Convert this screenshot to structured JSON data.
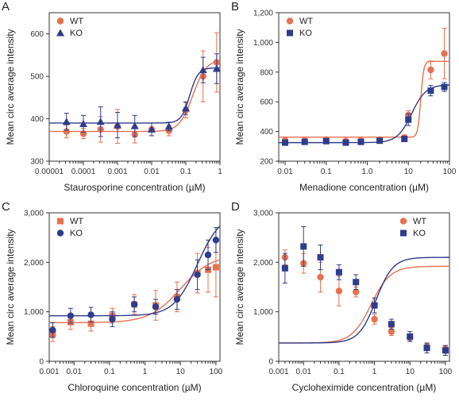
{
  "chart_data": [
    {
      "panel": "A",
      "type": "scatter",
      "xscale": "log",
      "xlim": [
        1e-05,
        1
      ],
      "ylim": [
        300,
        650
      ],
      "xlabel": "Staurosporine concentration (µM)",
      "ylabel": "Mean circ average intensity",
      "xticks": [
        1e-05,
        0.0001,
        0.001,
        0.01,
        0.1,
        1
      ],
      "xtick_labels": [
        "0.00001",
        "0.0001",
        "0.001",
        "0.01",
        "0.1",
        "1"
      ],
      "yticks": [
        300,
        400,
        500,
        600
      ],
      "ytick_labels": [
        "300",
        "400",
        "500",
        "600"
      ],
      "legend": {
        "position": "top-left",
        "entries": [
          "WT",
          "KO"
        ]
      },
      "series": [
        {
          "name": "WT",
          "color": "#e8704f",
          "marker": "circle",
          "x": [
            3.2e-05,
            0.0001,
            0.00032,
            0.001,
            0.0032,
            0.01,
            0.032,
            0.1,
            0.32,
            0.8
          ],
          "y": [
            370,
            365,
            375,
            382,
            363,
            375,
            372,
            420,
            500,
            533
          ],
          "err": [
            15,
            12,
            30,
            40,
            20,
            15,
            12,
            18,
            60,
            70
          ],
          "fit": {
            "bottom": 370,
            "top": 540,
            "ec50": 0.16,
            "hill": 2.2
          }
        },
        {
          "name": "KO",
          "color": "#2f3c8c",
          "marker": "triangle",
          "x": [
            3.2e-05,
            0.0001,
            0.00032,
            0.001,
            0.0032,
            0.01,
            0.032,
            0.1,
            0.32,
            0.8
          ],
          "y": [
            393,
            388,
            393,
            385,
            383,
            375,
            382,
            425,
            515,
            518
          ],
          "err": [
            20,
            20,
            35,
            30,
            25,
            15,
            10,
            15,
            30,
            35
          ],
          "fit": {
            "bottom": 390,
            "top": 520,
            "ec50": 0.13,
            "hill": 3.5
          }
        }
      ]
    },
    {
      "panel": "B",
      "type": "scatter",
      "xscale": "log",
      "xlim": [
        0.007,
        100
      ],
      "ylim": [
        200,
        1200
      ],
      "xlabel": "Menadione concentration (µM)",
      "ylabel": "Mean circ average intensity",
      "xticks": [
        0.01,
        0.1,
        1,
        10,
        100
      ],
      "xtick_labels": [
        "0.01",
        "0.1",
        "1.0",
        "10",
        "100"
      ],
      "yticks": [
        200,
        400,
        600,
        800,
        1000,
        1200
      ],
      "ytick_labels": [
        "200",
        "400",
        "600",
        "800",
        "1,000",
        "1,200"
      ],
      "legend": {
        "position": "top-left",
        "entries": [
          "WT",
          "KO"
        ]
      },
      "series": [
        {
          "name": "WT",
          "color": "#e8704f",
          "marker": "circle",
          "x": [
            0.01,
            0.03,
            0.1,
            0.3,
            0.7,
            2,
            8,
            10,
            35,
            75
          ],
          "y": [
            340,
            340,
            345,
            335,
            340,
            345,
            360,
            510,
            815,
            925
          ],
          "err": [
            10,
            10,
            10,
            10,
            10,
            10,
            15,
            30,
            60,
            170
          ],
          "fit": {
            "bottom": 362,
            "top": 872,
            "ec50": 20,
            "hill": 12
          }
        },
        {
          "name": "KO",
          "color": "#2f3c8c",
          "marker": "square",
          "x": [
            0.01,
            0.03,
            0.1,
            0.3,
            0.7,
            2,
            8,
            10,
            35,
            75
          ],
          "y": [
            325,
            330,
            335,
            325,
            330,
            338,
            350,
            480,
            675,
            700
          ],
          "err": [
            15,
            10,
            10,
            10,
            10,
            10,
            15,
            40,
            35,
            30
          ],
          "fit": {
            "bottom": 325,
            "top": 715,
            "ec50": 12,
            "hill": 2.5
          }
        }
      ]
    },
    {
      "panel": "C",
      "type": "scatter",
      "xscale": "log",
      "xlim": [
        0.002,
        130
      ],
      "ylim": [
        0,
        3000
      ],
      "xlabel": "Chloroquine concentration (µM)",
      "ylabel": "Mean circ average intensity",
      "xticks": [
        0.001,
        0.01,
        0.1,
        1,
        10,
        100
      ],
      "xtick_labels": [
        "0.001",
        "0.01",
        "0.1",
        "1",
        "10",
        "100"
      ],
      "yticks": [
        0,
        1000,
        2000,
        3000
      ],
      "ytick_labels": [
        "0",
        "1,000",
        "2,000",
        "3,000"
      ],
      "legend": {
        "position": "top-left",
        "entries": [
          "WT",
          "KO"
        ]
      },
      "series": [
        {
          "name": "WT",
          "color": "#e8704f",
          "marker": "square",
          "x": [
            0.0025,
            0.008,
            0.03,
            0.12,
            0.5,
            2,
            8,
            30,
            60,
            100
          ],
          "y": [
            550,
            790,
            760,
            920,
            1150,
            1130,
            1300,
            1780,
            1850,
            1900
          ],
          "err": [
            150,
            150,
            150,
            150,
            200,
            300,
            300,
            400,
            450,
            600
          ],
          "fit": {
            "bottom": 780,
            "top": 2150,
            "ec50": 10,
            "hill": 1.0
          }
        },
        {
          "name": "KO",
          "color": "#2f3c8c",
          "marker": "circle",
          "x": [
            0.0025,
            0.008,
            0.03,
            0.12,
            0.5,
            2,
            8,
            30,
            60,
            100
          ],
          "y": [
            630,
            920,
            940,
            850,
            1150,
            1100,
            1250,
            1750,
            2150,
            2450
          ],
          "err": [
            150,
            150,
            150,
            150,
            150,
            150,
            200,
            300,
            300,
            250
          ],
          "fit": {
            "bottom": 920,
            "top": 3000,
            "ec50": 30,
            "hill": 1.3
          }
        }
      ]
    },
    {
      "panel": "D",
      "type": "scatter",
      "xscale": "log",
      "xlim": [
        0.002,
        130
      ],
      "ylim": [
        0,
        3000
      ],
      "xlabel": "Cycloheximide concentration (µM)",
      "ylabel": "Mean circ average intensity",
      "xticks": [
        0.001,
        0.01,
        0.1,
        1,
        10,
        100
      ],
      "xtick_labels": [
        "0.001",
        "0.01",
        "0.1",
        "1",
        "10",
        "100"
      ],
      "yticks": [
        0,
        1000,
        2000,
        3000
      ],
      "ytick_labels": [
        "0",
        "1,000",
        "2,000",
        "3,000"
      ],
      "legend": {
        "position": "top-right",
        "entries": [
          "WT",
          "KO"
        ]
      },
      "series": [
        {
          "name": "WT",
          "color": "#e8704f",
          "marker": "circle",
          "x": [
            0.003,
            0.01,
            0.03,
            0.1,
            0.3,
            1,
            3,
            10,
            30,
            100
          ],
          "y": [
            2100,
            1980,
            1700,
            1420,
            1400,
            850,
            600,
            480,
            300,
            250
          ],
          "err": [
            150,
            200,
            300,
            300,
            100,
            100,
            80,
            60,
            60,
            60
          ],
          "fit": {
            "bottom": 370,
            "top": 1920,
            "ec50": 0.8,
            "hill": 1.6
          }
        },
        {
          "name": "KO",
          "color": "#2f3c8c",
          "marker": "square",
          "x": [
            0.003,
            0.01,
            0.03,
            0.1,
            0.3,
            1,
            3,
            10,
            30,
            100
          ],
          "y": [
            1880,
            2320,
            2100,
            1800,
            1600,
            1130,
            750,
            500,
            270,
            220
          ],
          "err": [
            300,
            400,
            250,
            150,
            150,
            150,
            100,
            100,
            100,
            100
          ],
          "fit": {
            "bottom": 370,
            "top": 2100,
            "ec50": 1.1,
            "hill": 1.8
          }
        }
      ]
    }
  ]
}
